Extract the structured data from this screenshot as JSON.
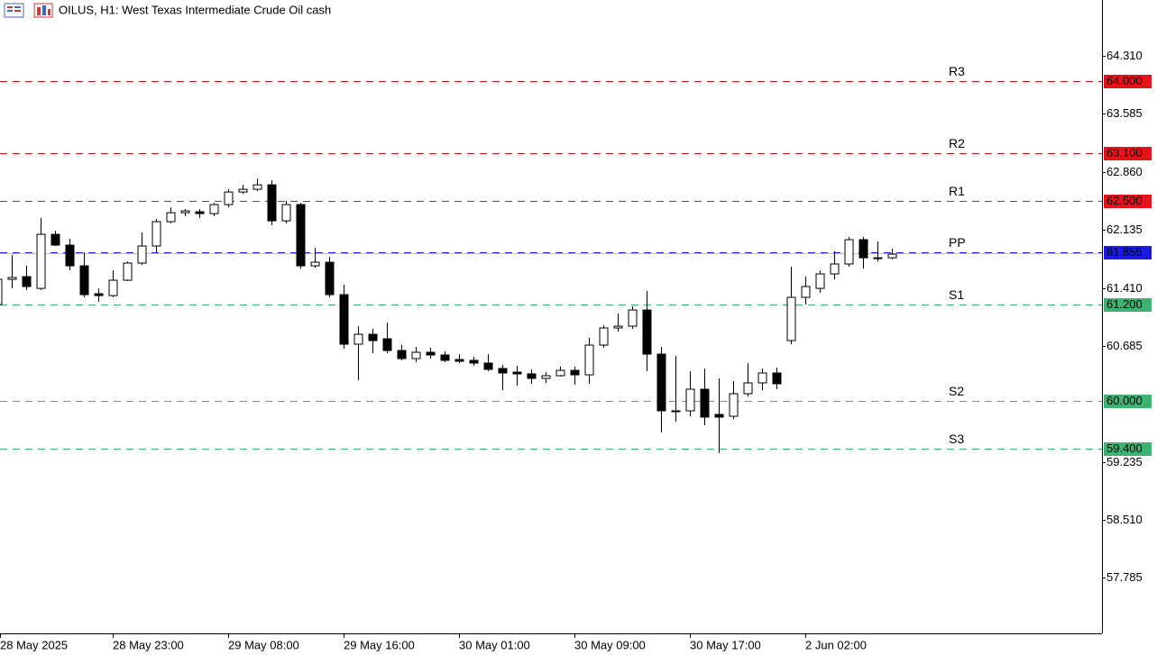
{
  "chart_data": {
    "type": "candlestick",
    "title": "OILUS, H1:  West Texas Intermediate Crude Oil cash",
    "categories": [
      "28 May 2025",
      null,
      null,
      null,
      null,
      null,
      null,
      null,
      "28 May 23:00",
      null,
      null,
      null,
      null,
      null,
      null,
      null,
      "29 May 08:00",
      null,
      null,
      null,
      null,
      null,
      null,
      null,
      "29 May 16:00",
      null,
      null,
      null,
      null,
      null,
      null,
      null,
      "30 May 01:00",
      null,
      null,
      null,
      null,
      null,
      null,
      null,
      "30 May 09:00",
      null,
      null,
      null,
      null,
      null,
      null,
      null,
      "30 May 17:00",
      null,
      null,
      null,
      null,
      null,
      null,
      null,
      "2 Jun 02:00",
      null,
      null,
      null,
      null,
      null,
      null
    ],
    "open": [
      61.202,
      61.517,
      61.551,
      61.404,
      62.08,
      61.945,
      61.686,
      61.337,
      61.314,
      61.506,
      61.72,
      61.934,
      62.238,
      62.35,
      62.362,
      62.339,
      62.452,
      62.609,
      62.643,
      62.699,
      62.249,
      62.452,
      61.686,
      61.731,
      61.326,
      60.706,
      60.83,
      60.774,
      60.627,
      60.526,
      60.605,
      60.571,
      60.515,
      60.504,
      60.47,
      60.402,
      60.357,
      60.335,
      60.278,
      60.312,
      60.379,
      60.323,
      60.695,
      60.909,
      60.931,
      61.134,
      60.582,
      59.873,
      59.873,
      60.143,
      59.828,
      59.805,
      60.087,
      60.222,
      60.346,
      60.751,
      61.292,
      61.404,
      61.585,
      61.709,
      62.013,
      61.787,
      61.787
    ],
    "high": [
      61.573,
      61.821,
      61.686,
      62.283,
      62.125,
      62.024,
      61.855,
      61.404,
      61.63,
      61.742,
      62.103,
      62.272,
      62.418,
      62.395,
      62.395,
      62.474,
      62.643,
      62.699,
      62.778,
      62.756,
      62.497,
      62.474,
      61.911,
      61.799,
      61.45,
      60.931,
      60.898,
      60.977,
      60.695,
      60.673,
      60.661,
      60.616,
      60.582,
      60.549,
      60.582,
      60.447,
      60.436,
      60.391,
      60.357,
      60.425,
      60.425,
      60.785,
      60.943,
      61.089,
      61.179,
      61.371,
      60.673,
      60.56,
      60.368,
      60.402,
      60.278,
      60.245,
      60.47,
      60.402,
      60.414,
      61.675,
      61.551,
      61.63,
      61.866,
      62.046,
      62.046,
      61.99,
      61.9
    ],
    "low": [
      61.179,
      61.404,
      61.382,
      61.382,
      61.934,
      61.63,
      61.292,
      61.236,
      61.292,
      61.495,
      61.697,
      61.855,
      62.215,
      62.305,
      62.283,
      62.305,
      62.418,
      62.587,
      62.621,
      62.193,
      62.215,
      61.652,
      61.664,
      61.292,
      60.65,
      60.256,
      60.594,
      60.594,
      60.504,
      60.481,
      60.526,
      60.481,
      60.47,
      60.436,
      60.368,
      60.132,
      60.188,
      60.211,
      60.222,
      60.301,
      60.2,
      60.211,
      60.661,
      60.864,
      60.898,
      60.368,
      59.603,
      59.738,
      59.805,
      59.693,
      59.344,
      59.772,
      60.053,
      60.132,
      60.143,
      60.706,
      61.202,
      61.348,
      61.517,
      61.675,
      61.652,
      61.742,
      61.765
    ],
    "close": [
      61.517,
      61.54,
      61.427,
      62.08,
      61.945,
      61.686,
      61.326,
      61.314,
      61.506,
      61.72,
      61.934,
      62.238,
      62.35,
      62.373,
      62.339,
      62.452,
      62.609,
      62.643,
      62.699,
      62.249,
      62.452,
      61.686,
      61.731,
      61.326,
      60.706,
      60.83,
      60.751,
      60.627,
      60.526,
      60.605,
      60.571,
      60.504,
      60.492,
      60.47,
      60.391,
      60.346,
      60.335,
      60.278,
      60.312,
      60.379,
      60.323,
      60.695,
      60.909,
      60.931,
      61.134,
      60.582,
      59.873,
      59.862,
      60.143,
      59.794,
      59.794,
      60.087,
      60.222,
      60.346,
      60.211,
      61.292,
      61.427,
      61.585,
      61.709,
      62.013,
      61.787,
      61.776,
      61.832
    ],
    "up_color": "#ffffff",
    "down_color": "#000000",
    "ylim": [
      57.09,
      65.01
    ],
    "yticks": [
      {
        "value": 64.31,
        "label": "64.310"
      },
      63.585,
      {
        "value": 62.86,
        "label": "62.860"
      },
      62.135,
      {
        "value": 61.41,
        "label": "61.410"
      },
      60.685,
      59.235,
      {
        "value": 58.51,
        "label": "58.510"
      },
      57.785
    ],
    "current_price": 61.84,
    "levels": [
      {
        "name": "R3",
        "value": 64,
        "label": "64.000",
        "color": "#e8131a"
      },
      {
        "name": "R2",
        "value": 63.1,
        "label": "63.100",
        "color": "#e8131a"
      },
      {
        "name": "R1",
        "value": 62.5,
        "label": "62.500",
        "color": "#e8131a"
      },
      {
        "name": "PP",
        "value": 61.855,
        "label": "61.855",
        "color": "#1a1ae6"
      },
      {
        "name": "S1",
        "value": 61.2,
        "label": "61.200",
        "color": "#3cb371"
      },
      {
        "name": "S2",
        "value": 60,
        "label": "60.000",
        "color": "#3cb371"
      },
      {
        "name": "S3",
        "value": 59.4,
        "label": "59.400",
        "color": "#3cb371"
      }
    ]
  }
}
